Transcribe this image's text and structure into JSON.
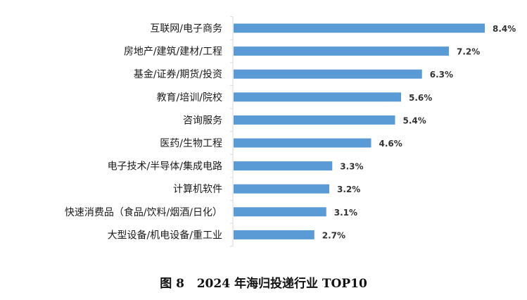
{
  "caption": "图 8   2024 年海归投递行业 TOP10",
  "chart_data": {
    "type": "bar",
    "orientation": "horizontal",
    "categories": [
      "互联网/电子商务",
      "房地产/建筑/建材/工程",
      "基金/证券/期货/投资",
      "教育/培训/院校",
      "咨询服务",
      "医药/生物工程",
      "电子技术/半导体/集成电路",
      "计算机软件",
      "快速消费品（食品/饮料/烟酒/日化）",
      "大型设备/机电设备/重工业"
    ],
    "values": [
      8.4,
      7.2,
      6.3,
      5.6,
      5.4,
      4.6,
      3.3,
      3.2,
      3.1,
      2.7
    ],
    "value_labels": [
      "8.4%",
      "7.2%",
      "6.3%",
      "5.6%",
      "5.4%",
      "4.6%",
      "3.3%",
      "3.2%",
      "3.1%",
      "2.7%"
    ],
    "title": "",
    "xlabel": "",
    "ylabel": "",
    "xlim": [
      0,
      9
    ],
    "grid": false,
    "legend": "none",
    "bar_color": "#5b9bd5",
    "axis_color": "#d9d9d9"
  }
}
